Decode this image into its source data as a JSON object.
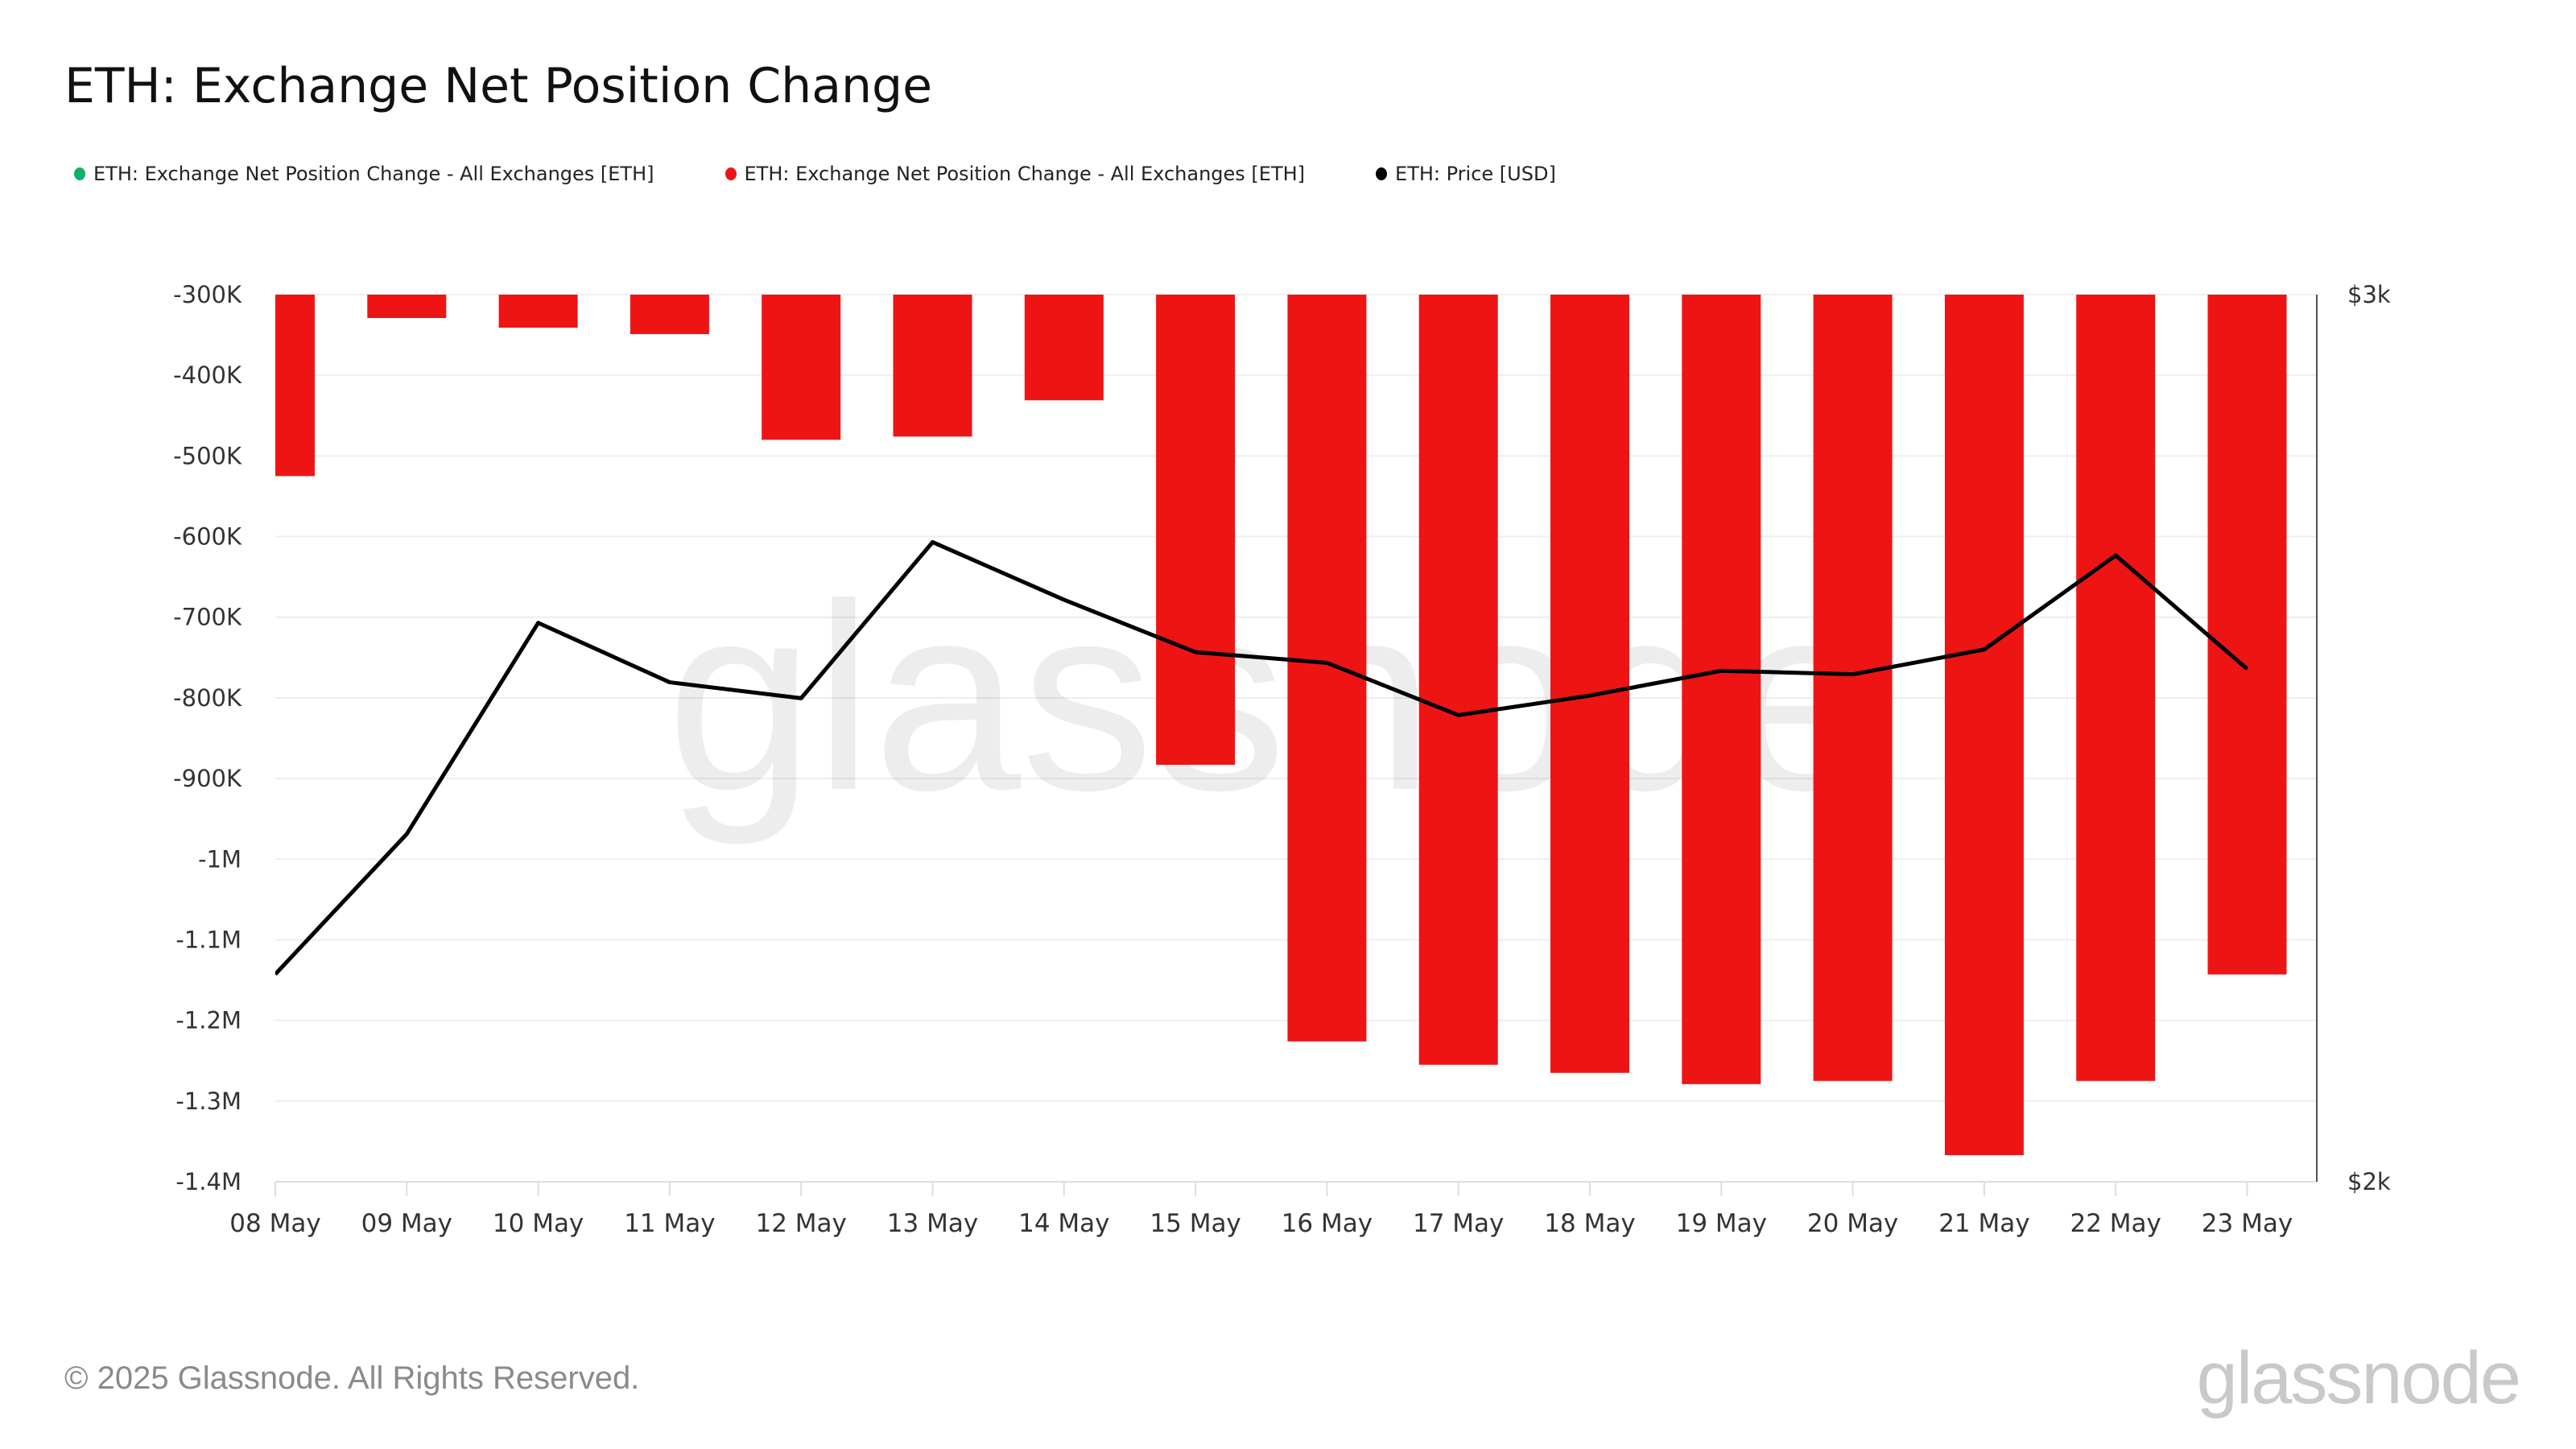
{
  "title": "ETH: Exchange Net Position Change",
  "legend": [
    {
      "label": "ETH: Exchange Net Position Change - All Exchanges [ETH]",
      "color": "#10b06a"
    },
    {
      "label": "ETH: Exchange Net Position Change - All Exchanges [ETH]",
      "color": "#ee1414"
    },
    {
      "label": "ETH: Price [USD]",
      "color": "#000000"
    }
  ],
  "footer": "© 2025 Glassnode. All Rights Reserved.",
  "logo": "glassnode",
  "watermark": "glassnode",
  "chart_data": {
    "type": "bar",
    "categories": [
      "08 May",
      "09 May",
      "10 May",
      "11 May",
      "12 May",
      "13 May",
      "14 May",
      "15 May",
      "16 May",
      "17 May",
      "18 May",
      "19 May",
      "20 May",
      "21 May",
      "22 May",
      "23 May"
    ],
    "series": [
      {
        "name": "ETH: Exchange Net Position Change - All Exchanges [ETH]",
        "type": "bar",
        "axis": "left",
        "color": "#ee1414",
        "values": [
          -525000,
          -329000,
          -341000,
          -349000,
          -480000,
          -476000,
          -431000,
          -883000,
          -1226000,
          -1255000,
          -1265000,
          -1279000,
          -1275000,
          -1367000,
          -1275000,
          -1143000
        ]
      },
      {
        "name": "ETH: Price [USD]",
        "type": "line",
        "axis": "right",
        "color": "#000000",
        "values": [
          2234,
          2392,
          2630,
          2563,
          2545,
          2721,
          2656,
          2597,
          2585,
          2526,
          2548,
          2576,
          2572,
          2600,
          2706,
          2578
        ]
      }
    ],
    "left_axis": {
      "ylim": [
        -1400000,
        -300000
      ],
      "ticks": [
        -300000,
        -400000,
        -500000,
        -600000,
        -700000,
        -800000,
        -900000,
        -1000000,
        -1100000,
        -1200000,
        -1300000,
        -1400000
      ],
      "tick_labels": [
        "-300K",
        "-400K",
        "-500K",
        "-600K",
        "-700K",
        "-800K",
        "-900K",
        "-1M",
        "-1.1M",
        "-1.2M",
        "-1.3M",
        "-1.4M"
      ]
    },
    "right_axis": {
      "ylim": [
        2000,
        3000
      ],
      "ticks": [
        3000,
        2000
      ],
      "tick_labels": [
        "$3k",
        "$2k"
      ]
    },
    "grid": true,
    "legend_position": "top-left"
  }
}
